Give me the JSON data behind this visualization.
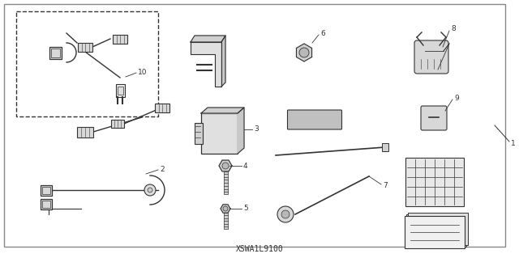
{
  "part_code": "XSWA1L9100",
  "bg_color": "#ffffff",
  "line_color": "#333333",
  "fig_w": 6.4,
  "fig_h": 3.19,
  "dpi": 100
}
